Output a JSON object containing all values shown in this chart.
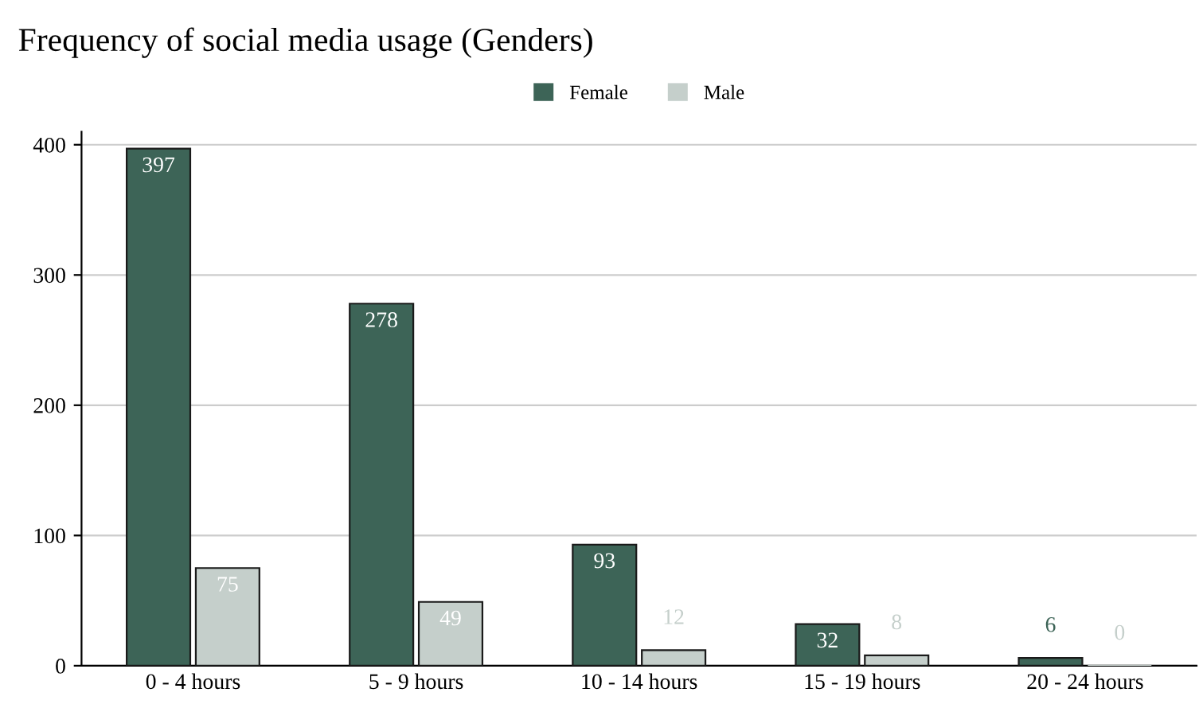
{
  "chart_data": {
    "type": "bar",
    "title": "Frequency of social media usage (Genders)",
    "categories": [
      "0 - 4 hours",
      "5 - 9 hours",
      "10 - 14 hours",
      "15 - 19 hours",
      "20 - 24 hours"
    ],
    "series": [
      {
        "name": "Female",
        "color": "#3d6457",
        "values": [
          397,
          278,
          93,
          32,
          6
        ]
      },
      {
        "name": "Male",
        "color": "#c5cfcb",
        "values": [
          75,
          49,
          12,
          8,
          0
        ]
      }
    ],
    "ylim": [
      0,
      410
    ],
    "yticks": [
      0,
      100,
      200,
      300,
      400
    ],
    "grid": "y",
    "legend": "top",
    "data_labels": true
  }
}
